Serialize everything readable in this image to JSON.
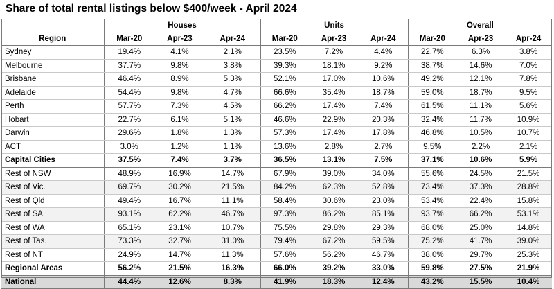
{
  "title": "Share of total rental listings below $400/week - April 2024",
  "header": {
    "region_label": "Region",
    "groups": [
      "Houses",
      "Units",
      "Overall"
    ],
    "periods": [
      "Mar-20",
      "Apr-23",
      "Apr-24"
    ]
  },
  "rows": [
    {
      "region": "Sydney",
      "values": [
        "19.4%",
        "4.1%",
        "2.1%",
        "23.5%",
        "7.2%",
        "4.4%",
        "22.7%",
        "6.3%",
        "3.8%"
      ],
      "style": "plain"
    },
    {
      "region": "Melbourne",
      "values": [
        "37.7%",
        "9.8%",
        "3.8%",
        "39.3%",
        "18.1%",
        "9.2%",
        "38.7%",
        "14.6%",
        "7.0%"
      ],
      "style": "plain"
    },
    {
      "region": "Brisbane",
      "values": [
        "46.4%",
        "8.9%",
        "5.3%",
        "52.1%",
        "17.0%",
        "10.6%",
        "49.2%",
        "12.1%",
        "7.8%"
      ],
      "style": "plain"
    },
    {
      "region": "Adelaide",
      "values": [
        "54.4%",
        "9.8%",
        "4.7%",
        "66.6%",
        "35.4%",
        "18.7%",
        "59.0%",
        "18.7%",
        "9.5%"
      ],
      "style": "plain"
    },
    {
      "region": "Perth",
      "values": [
        "57.7%",
        "7.3%",
        "4.5%",
        "66.2%",
        "17.4%",
        "7.4%",
        "61.5%",
        "11.1%",
        "5.6%"
      ],
      "style": "plain"
    },
    {
      "region": "Hobart",
      "values": [
        "22.7%",
        "6.1%",
        "5.1%",
        "46.6%",
        "22.9%",
        "20.3%",
        "32.4%",
        "11.7%",
        "10.9%"
      ],
      "style": "plain"
    },
    {
      "region": "Darwin",
      "values": [
        "29.6%",
        "1.8%",
        "1.3%",
        "57.3%",
        "17.4%",
        "17.8%",
        "46.8%",
        "10.5%",
        "10.7%"
      ],
      "style": "plain"
    },
    {
      "region": "ACT",
      "values": [
        "3.0%",
        "1.2%",
        "1.1%",
        "13.6%",
        "2.8%",
        "2.7%",
        "9.5%",
        "2.2%",
        "2.1%"
      ],
      "style": "plain"
    },
    {
      "region": "Capital Cities",
      "values": [
        "37.5%",
        "7.4%",
        "3.7%",
        "36.5%",
        "13.1%",
        "7.5%",
        "37.1%",
        "10.6%",
        "5.9%"
      ],
      "style": "capital"
    },
    {
      "region": "Rest of NSW",
      "values": [
        "48.9%",
        "16.9%",
        "14.7%",
        "67.9%",
        "39.0%",
        "34.0%",
        "55.6%",
        "24.5%",
        "21.5%"
      ],
      "style": "plain"
    },
    {
      "region": "Rest of Vic.",
      "values": [
        "69.7%",
        "30.2%",
        "21.5%",
        "84.2%",
        "62.3%",
        "52.8%",
        "73.4%",
        "37.3%",
        "28.8%"
      ],
      "style": "shaded"
    },
    {
      "region": "Rest of Qld",
      "values": [
        "49.4%",
        "16.7%",
        "11.1%",
        "58.4%",
        "30.6%",
        "23.0%",
        "53.4%",
        "22.4%",
        "15.8%"
      ],
      "style": "plain"
    },
    {
      "region": "Rest of SA",
      "values": [
        "93.1%",
        "62.2%",
        "46.7%",
        "97.3%",
        "86.2%",
        "85.1%",
        "93.7%",
        "66.2%",
        "53.1%"
      ],
      "style": "shaded"
    },
    {
      "region": "Rest of WA",
      "values": [
        "65.1%",
        "23.1%",
        "10.7%",
        "75.5%",
        "29.8%",
        "29.3%",
        "68.0%",
        "25.0%",
        "14.8%"
      ],
      "style": "plain"
    },
    {
      "region": "Rest of Tas.",
      "values": [
        "73.3%",
        "32.7%",
        "31.0%",
        "79.4%",
        "67.2%",
        "59.5%",
        "75.2%",
        "41.7%",
        "39.0%"
      ],
      "style": "shaded"
    },
    {
      "region": "Rest of NT",
      "values": [
        "24.9%",
        "14.7%",
        "11.3%",
        "57.6%",
        "56.2%",
        "46.7%",
        "38.0%",
        "29.7%",
        "25.3%"
      ],
      "style": "plain"
    },
    {
      "region": "Regional Areas",
      "values": [
        "56.2%",
        "21.5%",
        "16.3%",
        "66.0%",
        "39.2%",
        "33.0%",
        "59.8%",
        "27.5%",
        "21.9%"
      ],
      "style": "capital"
    },
    {
      "region": "National",
      "values": [
        "44.4%",
        "12.6%",
        "8.3%",
        "41.9%",
        "18.3%",
        "12.4%",
        "43.2%",
        "15.5%",
        "10.4%"
      ],
      "style": "national"
    }
  ]
}
